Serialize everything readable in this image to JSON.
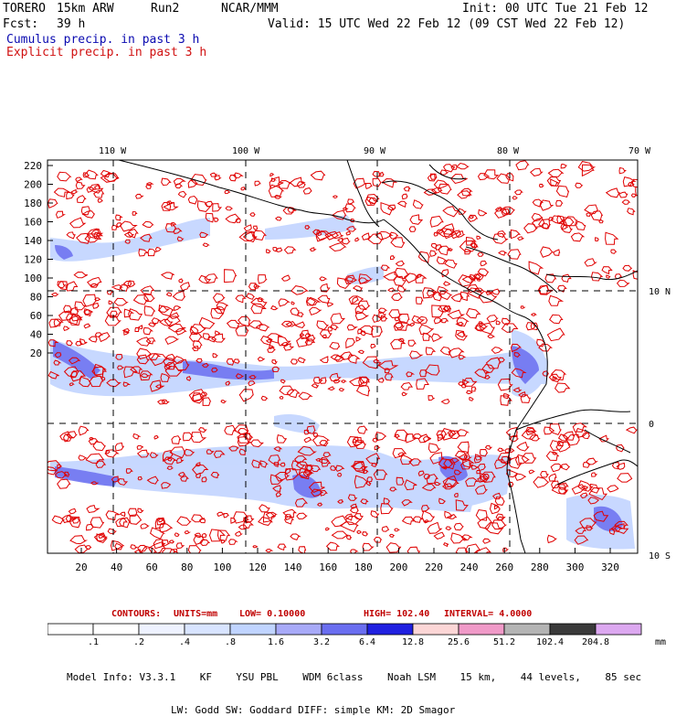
{
  "header": {
    "model_name": "TORERO",
    "resolution": "15km ARW",
    "run": "Run2",
    "org": "NCAR/MMM",
    "init": "Init: 00 UTC Tue 21 Feb 12",
    "fcst_label": "Fcst:",
    "fcst_value": "39 h",
    "valid": "Valid: 15 UTC Wed 22 Feb 12 (09 CST Wed 22 Feb 12)",
    "field1": "Cumulus precip. in past 3 h",
    "field2": "Explicit precip. in past 3 h"
  },
  "map": {
    "top_lon_labels": [
      "110 W",
      "100 W",
      "90 W",
      "80 W",
      "70 W"
    ],
    "right_lat_labels": [
      "10 N",
      "0",
      "10 S"
    ],
    "y_grid_labels": [
      "220",
      "200",
      "180",
      "160",
      "140",
      "120",
      "100",
      "80",
      "60",
      "40",
      "20"
    ],
    "x_grid_labels": [
      "20",
      "40",
      "60",
      "80",
      "100",
      "120",
      "140",
      "160",
      "180",
      "200",
      "220",
      "240",
      "260",
      "280",
      "300",
      "320"
    ],
    "colors": {
      "frame": "#000000",
      "coast": "#000000",
      "explicit_contour": "#e00000",
      "graticule": "#000000"
    }
  },
  "contour_legend": {
    "contours": "CONTOURS:",
    "units": "UNITS=mm",
    "low": "LOW= 0.10000",
    "high": "HIGH= 102.40",
    "interval": "INTERVAL= 4.0000"
  },
  "colorbar": {
    "labels": [
      ".1",
      ".2",
      ".4",
      ".8",
      "1.6",
      "3.2",
      "6.4",
      "12.8",
      "25.6",
      "51.2",
      "102.4",
      "204.8"
    ],
    "unit": "mm",
    "colors": [
      "#ffffff",
      "#ffffff",
      "#eef2ff",
      "#d8e4ff",
      "#c0d4ff",
      "#a8aaf8",
      "#6a6ef0",
      "#2020e0",
      "#fcd6d6",
      "#f09ac8",
      "#b4b4b4",
      "#3a3a3a",
      "#dca8f0"
    ]
  },
  "model_info": {
    "line1": "Model Info: V3.3.1    KF    YSU PBL    WDM 6class    Noah LSM    15 km,    44 levels,    85 sec",
    "line2": "LW: Godd SW: Goddard DIFF: simple KM: 2D Smagor"
  }
}
